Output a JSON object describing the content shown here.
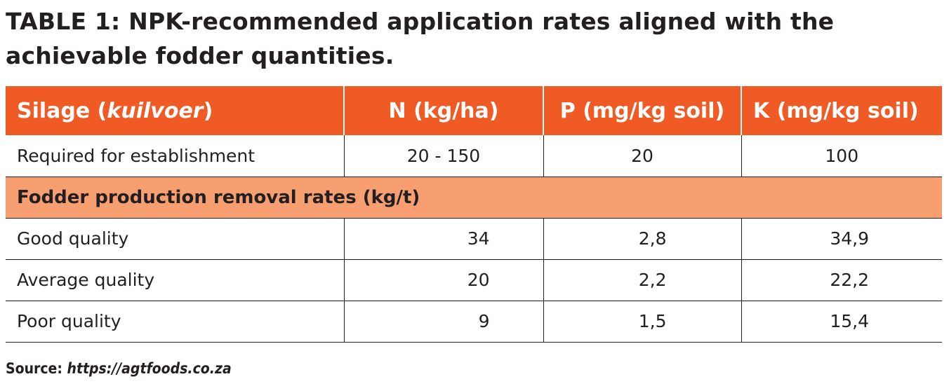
{
  "title_line1": "TABLE 1: NPK-recommended application rates aligned with the",
  "title_line2": "achievable fodder quantities.",
  "table": {
    "headers": {
      "silage_label": "Silage (",
      "silage_italic": "kuilvoer",
      "silage_close": ")",
      "n": "N (kg/ha)",
      "p": "P (mg/kg soil)",
      "k": "K (mg/kg soil)"
    },
    "establishment": {
      "label": "Required for establishment",
      "n": "20 - 150",
      "p": "20",
      "k": "100"
    },
    "section_heading": "Fodder production removal rates (kg/t)",
    "rows": [
      {
        "label": "Good quality",
        "n": "34",
        "p": "2,8",
        "k": "34,9"
      },
      {
        "label": "Average quality",
        "n": "20",
        "p": "2,2",
        "k": "22,2"
      },
      {
        "label": "Poor quality",
        "n": "9",
        "p": "1,5",
        "k": "15,4"
      }
    ]
  },
  "source": {
    "label": "Source: ",
    "url": "https://agtfoods.co.za"
  },
  "colors": {
    "header_bg": "#f05a24",
    "section_bg": "#f79f70",
    "text": "#231f20"
  }
}
